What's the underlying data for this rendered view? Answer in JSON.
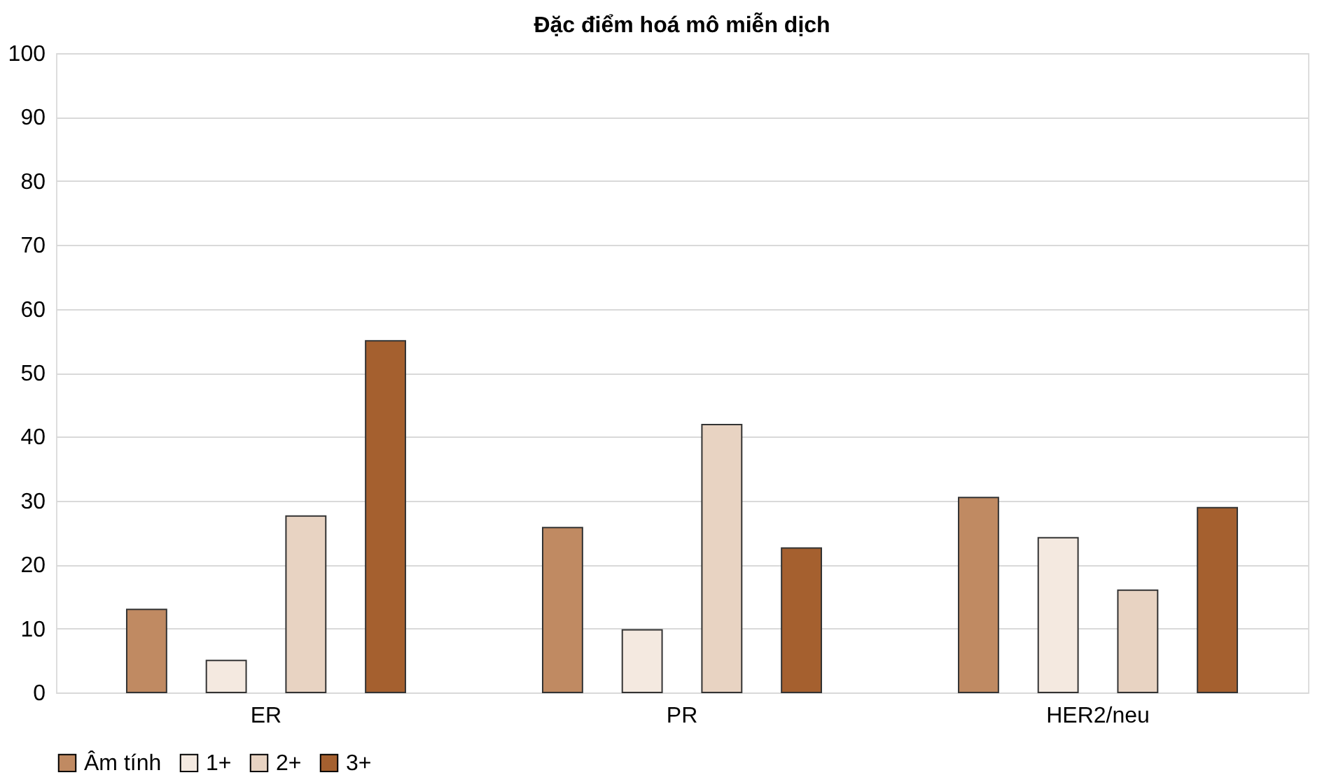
{
  "chart_data": {
    "type": "bar",
    "title": "Đặc điểm hoá mô miễn dịch",
    "categories": [
      "ER",
      "PR",
      "HER2/neu"
    ],
    "series": [
      {
        "name": "Âm tính",
        "color": "#c08a62",
        "values": [
          13.0,
          25.8,
          30.5
        ]
      },
      {
        "name": "1+",
        "color": "#f4e9e0",
        "values": [
          5.0,
          9.8,
          24.2
        ]
      },
      {
        "name": "2+",
        "color": "#e8d3c2",
        "values": [
          27.6,
          41.9,
          16.0
        ]
      },
      {
        "name": "3+",
        "color": "#a5602f",
        "values": [
          55.0,
          22.6,
          28.9
        ]
      }
    ],
    "ylim": [
      0,
      100
    ],
    "yticks": [
      0,
      10,
      20,
      30,
      40,
      50,
      60,
      70,
      80,
      90,
      100
    ],
    "grid": "y",
    "legend": "bottom"
  }
}
